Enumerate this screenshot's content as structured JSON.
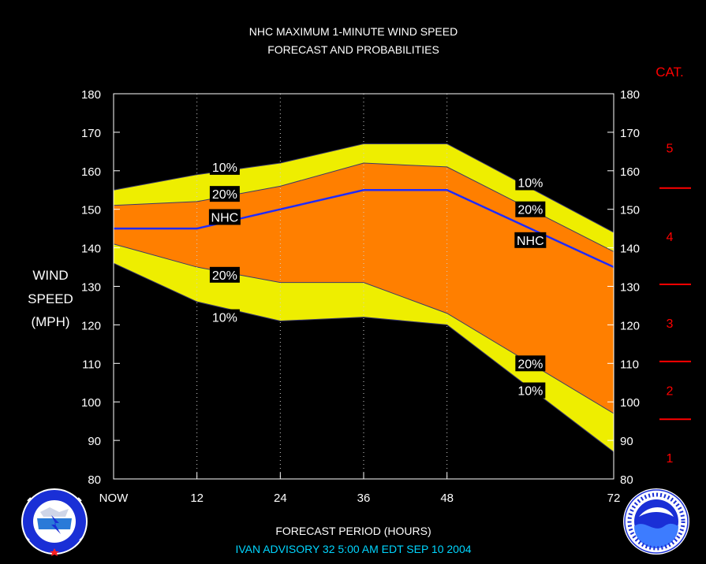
{
  "title_line1": "NHC MAXIMUM 1-MINUTE WIND SPEED",
  "title_line2": "FORECAST AND PROBABILITIES",
  "cat_header": "CAT.",
  "ylabel_lines": [
    "WIND",
    "SPEED",
    "(MPH)"
  ],
  "xlabel": "FORECAST PERIOD (HOURS)",
  "advisory": "IVAN   ADVISORY  32  5:00  AM  EDT  SEP  10  2004",
  "colors": {
    "background": "#000000",
    "band_10": "#eeee00",
    "band_20": "#ff7f00",
    "nhc_line": "#1f2bff",
    "category": "#ff0000",
    "axis": "#ffffff",
    "title": "#ffffff",
    "advisory": "#00d6ff"
  },
  "chart_data": {
    "type": "area",
    "x": [
      0,
      12,
      24,
      36,
      48,
      72
    ],
    "x_tick_labels": [
      "NOW",
      "12",
      "24",
      "36",
      "48",
      "72"
    ],
    "xlim": [
      0,
      72
    ],
    "ylim": [
      80,
      180
    ],
    "y_ticks": [
      80,
      90,
      100,
      110,
      120,
      130,
      140,
      150,
      160,
      170,
      180
    ],
    "grid_x": true,
    "series": [
      {
        "name": "10%",
        "values_upper": [
          155,
          159,
          162,
          167,
          167,
          144
        ],
        "values_lower": [
          136,
          126,
          121,
          122,
          120,
          87
        ]
      },
      {
        "name": "20%",
        "values_upper": [
          151,
          152,
          156,
          162,
          161,
          139
        ],
        "values_lower": [
          141,
          135,
          131,
          131,
          123,
          97
        ]
      },
      {
        "name": "NHC",
        "values": [
          145,
          145,
          150,
          155,
          155,
          135
        ]
      }
    ],
    "annotations": [
      {
        "text": "10%",
        "x": 16,
        "y": 161
      },
      {
        "text": "20%",
        "x": 16,
        "y": 154
      },
      {
        "text": "NHC",
        "x": 16,
        "y": 148
      },
      {
        "text": "20%",
        "x": 16,
        "y": 133
      },
      {
        "text": "10%",
        "x": 16,
        "y": 122
      },
      {
        "text": "10%",
        "x": 60,
        "y": 157
      },
      {
        "text": "20%",
        "x": 60,
        "y": 150
      },
      {
        "text": "NHC",
        "x": 60,
        "y": 142
      },
      {
        "text": "20%",
        "x": 60,
        "y": 110
      },
      {
        "text": "10%",
        "x": 60,
        "y": 103
      }
    ],
    "categories": [
      {
        "label": "1",
        "range": [
          74,
          95
        ]
      },
      {
        "label": "2",
        "range": [
          96,
          110
        ]
      },
      {
        "label": "3",
        "range": [
          111,
          130
        ]
      },
      {
        "label": "4",
        "range": [
          131,
          155
        ]
      },
      {
        "label": "5",
        "range": [
          156,
          180
        ]
      }
    ],
    "category_thresholds": [
      95.5,
      110.5,
      130.5,
      155.5
    ]
  }
}
